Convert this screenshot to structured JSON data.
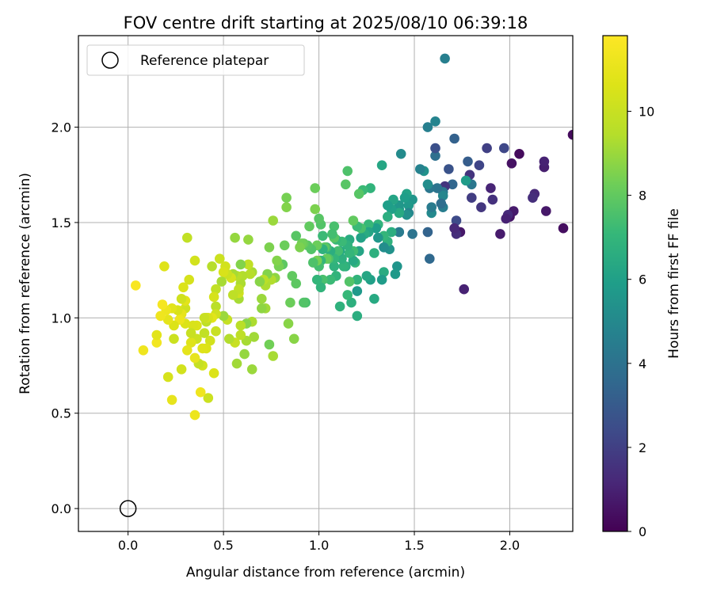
{
  "chart_data": {
    "type": "scatter",
    "title": "FOV centre drift starting at 2025/08/10 06:39:18",
    "xlabel": "Angular distance from reference (arcmin)",
    "ylabel": "Rotation from reference (arcmin)",
    "xlim": [
      -0.26,
      2.33
    ],
    "ylim": [
      -0.12,
      2.48
    ],
    "xticks": [
      0.0,
      0.5,
      1.0,
      1.5,
      2.0
    ],
    "xtick_labels": [
      "0.0",
      "0.5",
      "1.0",
      "1.5",
      "2.0"
    ],
    "yticks": [
      0.0,
      0.5,
      1.0,
      1.5,
      2.0
    ],
    "ytick_labels": [
      "0.0",
      "0.5",
      "1.0",
      "1.5",
      "2.0"
    ],
    "grid": true,
    "legend": {
      "position": "top-left",
      "entries": [
        "Reference platepar"
      ]
    },
    "colorbar": {
      "label": "Hours from first FF file",
      "range": [
        0,
        11.8
      ],
      "ticks": [
        0,
        2,
        4,
        6,
        8,
        10
      ],
      "tick_labels": [
        "0",
        "2",
        "4",
        "6",
        "8",
        "10"
      ],
      "colormap": "viridis"
    },
    "reference_point": {
      "x": 0.0,
      "y": 0.0,
      "label": "Reference platepar"
    },
    "points": [
      [
        2.33,
        1.96,
        0.3
      ],
      [
        2.28,
        1.47,
        0.4
      ],
      [
        2.19,
        1.56,
        0.7
      ],
      [
        2.18,
        1.79,
        0.9
      ],
      [
        2.18,
        1.82,
        1.0
      ],
      [
        2.13,
        1.65,
        1.2
      ],
      [
        2.12,
        1.63,
        1.4
      ],
      [
        2.05,
        1.86,
        0.3
      ],
      [
        2.02,
        1.56,
        0.8
      ],
      [
        2.01,
        1.81,
        0.5
      ],
      [
        2.0,
        1.53,
        0.6
      ],
      [
        1.99,
        1.54,
        1.3
      ],
      [
        1.98,
        1.52,
        1.0
      ],
      [
        1.97,
        1.89,
        2.3
      ],
      [
        1.95,
        1.44,
        0.8
      ],
      [
        1.91,
        1.62,
        1.5
      ],
      [
        1.9,
        1.68,
        1.1
      ],
      [
        1.88,
        1.89,
        2.0
      ],
      [
        1.85,
        1.58,
        1.7
      ],
      [
        1.84,
        1.8,
        2.2
      ],
      [
        1.8,
        1.63,
        1.9
      ],
      [
        1.8,
        1.7,
        4.2
      ],
      [
        1.79,
        1.75,
        1.6
      ],
      [
        1.78,
        1.82,
        3.1
      ],
      [
        1.77,
        1.72,
        5.8
      ],
      [
        1.76,
        1.15,
        1.0
      ],
      [
        1.74,
        1.45,
        0.7
      ],
      [
        1.72,
        1.44,
        1.4
      ],
      [
        1.72,
        1.51,
        2.4
      ],
      [
        1.71,
        1.94,
        3.3
      ],
      [
        1.71,
        1.47,
        1.2
      ],
      [
        1.7,
        1.7,
        3.5
      ],
      [
        1.68,
        1.78,
        2.7
      ],
      [
        1.66,
        2.36,
        4.6
      ],
      [
        1.66,
        1.69,
        1.6
      ],
      [
        1.65,
        1.66,
        4.3
      ],
      [
        1.65,
        1.58,
        4.5
      ],
      [
        1.65,
        1.64,
        4.9
      ],
      [
        1.64,
        1.6,
        3.8
      ],
      [
        1.62,
        1.68,
        4.1
      ],
      [
        1.61,
        1.85,
        3.9
      ],
      [
        1.61,
        1.89,
        2.6
      ],
      [
        1.61,
        2.03,
        4.8
      ],
      [
        1.59,
        1.55,
        5.0
      ],
      [
        1.59,
        1.58,
        4.4
      ],
      [
        1.58,
        1.31,
        3.6
      ],
      [
        1.58,
        1.68,
        4.2
      ],
      [
        1.57,
        1.45,
        3.4
      ],
      [
        1.57,
        2.0,
        4.6
      ],
      [
        1.57,
        1.7,
        5.2
      ],
      [
        1.55,
        1.77,
        5.4
      ],
      [
        1.53,
        1.78,
        4.7
      ],
      [
        1.49,
        1.62,
        5.5
      ],
      [
        1.49,
        1.44,
        4.1
      ],
      [
        1.47,
        1.59,
        5.7
      ],
      [
        1.47,
        1.55,
        4.9
      ],
      [
        1.46,
        1.65,
        6.1
      ],
      [
        1.46,
        1.54,
        5.3
      ],
      [
        1.45,
        1.63,
        5.9
      ],
      [
        1.43,
        1.86,
        5.1
      ],
      [
        1.42,
        1.45,
        4.4
      ],
      [
        1.42,
        1.57,
        5.8
      ],
      [
        1.42,
        1.59,
        5.6
      ],
      [
        1.42,
        1.55,
        6.4
      ],
      [
        1.41,
        1.27,
        5.5
      ],
      [
        1.4,
        1.23,
        5.7
      ],
      [
        1.39,
        1.62,
        6.2
      ],
      [
        1.38,
        1.45,
        6.6
      ],
      [
        1.38,
        1.57,
        6.0
      ],
      [
        1.37,
        1.36,
        5.4
      ],
      [
        1.36,
        1.4,
        6.8
      ],
      [
        1.36,
        1.59,
        5.9
      ],
      [
        1.36,
        1.53,
        6.6
      ],
      [
        1.34,
        1.37,
        5.2
      ],
      [
        1.34,
        1.43,
        7.0
      ],
      [
        1.34,
        1.24,
        6.5
      ],
      [
        1.33,
        1.8,
        6.3
      ],
      [
        1.33,
        1.2,
        5.8
      ],
      [
        1.31,
        1.49,
        6.9
      ],
      [
        1.31,
        1.42,
        5.6
      ],
      [
        1.3,
        1.47,
        5.9
      ],
      [
        1.29,
        1.1,
        6.4
      ],
      [
        1.29,
        1.34,
        6.7
      ],
      [
        1.27,
        1.68,
        6.9
      ],
      [
        1.27,
        1.2,
        6.0
      ],
      [
        1.26,
        1.49,
        7.1
      ],
      [
        1.26,
        1.45,
        6.2
      ],
      [
        1.25,
        1.22,
        6.3
      ],
      [
        1.24,
        1.44,
        6.5
      ],
      [
        1.23,
        1.67,
        7.2
      ],
      [
        1.22,
        1.42,
        6.1
      ],
      [
        1.22,
        1.47,
        7.5
      ],
      [
        1.21,
        1.35,
        6.2
      ],
      [
        1.21,
        1.65,
        7.8
      ],
      [
        1.2,
        1.14,
        5.7
      ],
      [
        1.2,
        1.01,
        6.6
      ],
      [
        1.2,
        1.2,
        6.9
      ],
      [
        1.2,
        1.48,
        7.2
      ],
      [
        1.19,
        1.29,
        7.0
      ],
      [
        1.18,
        1.35,
        7.3
      ],
      [
        1.18,
        1.51,
        8.0
      ],
      [
        1.18,
        1.3,
        6.4
      ],
      [
        1.17,
        1.08,
        6.7
      ],
      [
        1.16,
        1.19,
        7.7
      ],
      [
        1.16,
        1.41,
        6.5
      ],
      [
        1.16,
        1.34,
        7.0
      ],
      [
        1.15,
        1.77,
        7.6
      ],
      [
        1.15,
        1.38,
        6.8
      ],
      [
        1.15,
        1.12,
        7.1
      ],
      [
        1.14,
        1.7,
        7.8
      ],
      [
        1.14,
        1.27,
        6.6
      ],
      [
        1.13,
        1.27,
        6.9
      ],
      [
        1.12,
        1.31,
        6.7
      ],
      [
        1.12,
        1.4,
        7.2
      ],
      [
        1.11,
        1.35,
        6.4
      ],
      [
        1.11,
        1.06,
        6.8
      ],
      [
        1.1,
        1.35,
        7.4
      ],
      [
        1.09,
        1.22,
        6.9
      ],
      [
        1.09,
        1.41,
        7.1
      ],
      [
        1.08,
        1.48,
        7.5
      ],
      [
        1.08,
        1.42,
        7.8
      ],
      [
        1.08,
        1.27,
        6.8
      ],
      [
        1.08,
        1.31,
        7.0
      ],
      [
        1.07,
        1.44,
        7.4
      ],
      [
        1.06,
        1.2,
        7.2
      ],
      [
        1.06,
        1.35,
        6.6
      ],
      [
        1.05,
        1.31,
        7.6
      ],
      [
        1.04,
        1.31,
        8.1
      ],
      [
        1.04,
        1.37,
        7.3
      ],
      [
        1.03,
        1.37,
        7.9
      ],
      [
        1.02,
        1.36,
        6.8
      ],
      [
        1.02,
        1.43,
        7.2
      ],
      [
        1.02,
        1.2,
        7.5
      ],
      [
        1.01,
        1.49,
        7.7
      ],
      [
        1.01,
        1.16,
        6.9
      ],
      [
        1.01,
        1.3,
        7.0
      ],
      [
        1.0,
        1.27,
        7.4
      ],
      [
        1.0,
        1.52,
        7.8
      ],
      [
        0.99,
        1.38,
        8.2
      ],
      [
        0.99,
        1.2,
        7.0
      ],
      [
        0.99,
        1.3,
        8.4
      ],
      [
        0.98,
        1.68,
        8.2
      ],
      [
        0.98,
        1.57,
        8.5
      ],
      [
        0.97,
        1.29,
        7.6
      ],
      [
        0.96,
        1.36,
        7.7
      ],
      [
        0.95,
        1.48,
        8.0
      ],
      [
        0.94,
        1.38,
        7.8
      ],
      [
        0.93,
        1.08,
        7.5
      ],
      [
        0.92,
        1.39,
        8.1
      ],
      [
        0.92,
        1.08,
        7.7
      ],
      [
        0.91,
        1.39,
        8.3
      ],
      [
        0.9,
        1.37,
        8.5
      ],
      [
        0.88,
        1.43,
        7.8
      ],
      [
        0.88,
        1.18,
        7.9
      ],
      [
        0.87,
        0.89,
        8.7
      ],
      [
        0.86,
        1.22,
        8.0
      ],
      [
        0.85,
        1.08,
        8.2
      ],
      [
        0.84,
        0.97,
        8.7
      ],
      [
        0.83,
        1.58,
        8.6
      ],
      [
        0.83,
        1.63,
        8.4
      ],
      [
        0.82,
        1.38,
        8.2
      ],
      [
        0.81,
        1.28,
        7.9
      ],
      [
        0.79,
        1.27,
        8.4
      ],
      [
        0.78,
        1.3,
        8.6
      ],
      [
        0.77,
        1.21,
        8.8
      ],
      [
        0.76,
        1.51,
        9.0
      ],
      [
        0.76,
        0.8,
        9.2
      ],
      [
        0.75,
        1.2,
        9.4
      ],
      [
        0.74,
        1.37,
        8.5
      ],
      [
        0.74,
        0.86,
        8.3
      ],
      [
        0.73,
        1.23,
        8.6
      ],
      [
        0.72,
        1.05,
        9.1
      ],
      [
        0.72,
        1.17,
        9.3
      ],
      [
        0.71,
        1.2,
        9.6
      ],
      [
        0.7,
        1.05,
        8.8
      ],
      [
        0.7,
        1.1,
        9.0
      ],
      [
        0.69,
        1.19,
        8.7
      ],
      [
        0.66,
        0.9,
        9.1
      ],
      [
        0.65,
        0.73,
        9.0
      ],
      [
        0.65,
        1.24,
        9.2
      ],
      [
        0.65,
        0.98,
        9.3
      ],
      [
        0.64,
        1.23,
        9.5
      ],
      [
        0.63,
        1.28,
        9.8
      ],
      [
        0.63,
        1.41,
        8.9
      ],
      [
        0.62,
        0.88,
        9.2
      ],
      [
        0.62,
        0.97,
        8.7
      ],
      [
        0.61,
        0.81,
        8.9
      ],
      [
        0.6,
        1.22,
        9.4
      ],
      [
        0.59,
        0.91,
        9.7
      ],
      [
        0.59,
        1.28,
        8.6
      ],
      [
        0.59,
        1.18,
        9.3
      ],
      [
        0.59,
        0.96,
        9.6
      ],
      [
        0.58,
        1.1,
        9.2
      ],
      [
        0.58,
        1.13,
        10.2
      ],
      [
        0.58,
        1.15,
        9.8
      ],
      [
        0.57,
        0.76,
        9.1
      ],
      [
        0.57,
        1.22,
        9.5
      ],
      [
        0.56,
        0.87,
        10.0
      ],
      [
        0.56,
        1.42,
        8.9
      ],
      [
        0.55,
        1.12,
        9.7
      ],
      [
        0.55,
        1.23,
        9.2
      ],
      [
        0.54,
        1.21,
        10.4
      ],
      [
        0.53,
        0.89,
        9.4
      ],
      [
        0.52,
        1.23,
        10.1
      ],
      [
        0.52,
        0.99,
        9.9
      ],
      [
        0.51,
        1.27,
        10.3
      ],
      [
        0.5,
        1.01,
        9.0
      ],
      [
        0.5,
        1.24,
        10.5
      ],
      [
        0.49,
        1.19,
        9.2
      ],
      [
        0.48,
        1.31,
        10.1
      ],
      [
        0.46,
        1.06,
        9.6
      ],
      [
        0.46,
        1.15,
        9.8
      ],
      [
        0.46,
        0.93,
        10.0
      ],
      [
        0.46,
        1.02,
        10.2
      ],
      [
        0.45,
        0.71,
        10.6
      ],
      [
        0.45,
        1.11,
        10.4
      ],
      [
        0.44,
        1.0,
        10.8
      ],
      [
        0.44,
        1.27,
        9.5
      ],
      [
        0.43,
        0.88,
        10.3
      ],
      [
        0.42,
        1.0,
        10.5
      ],
      [
        0.42,
        0.58,
        10.1
      ],
      [
        0.41,
        0.98,
        9.7
      ],
      [
        0.41,
        0.84,
        10.6
      ],
      [
        0.41,
        1.0,
        10.4
      ],
      [
        0.4,
        1.0,
        10.0
      ],
      [
        0.4,
        0.92,
        9.8
      ],
      [
        0.39,
        0.75,
        10.3
      ],
      [
        0.39,
        0.84,
        10.7
      ],
      [
        0.38,
        0.61,
        11.3
      ],
      [
        0.37,
        0.76,
        9.9
      ],
      [
        0.36,
        0.89,
        10.1
      ],
      [
        0.36,
        0.96,
        10.6
      ],
      [
        0.35,
        0.79,
        11.0
      ],
      [
        0.35,
        1.3,
        10.3
      ],
      [
        0.35,
        0.49,
        11.2
      ],
      [
        0.34,
        0.96,
        10.5
      ],
      [
        0.33,
        0.87,
        10.7
      ],
      [
        0.33,
        0.92,
        10.0
      ],
      [
        0.32,
        1.2,
        10.4
      ],
      [
        0.31,
        1.42,
        9.8
      ],
      [
        0.31,
        0.83,
        10.9
      ],
      [
        0.3,
        1.05,
        10.2
      ],
      [
        0.3,
        0.97,
        10.6
      ],
      [
        0.3,
        1.09,
        10.8
      ],
      [
        0.29,
        1.16,
        10.6
      ],
      [
        0.28,
        0.73,
        10.3
      ],
      [
        0.28,
        1.02,
        11.0
      ],
      [
        0.28,
        1.1,
        10.2
      ],
      [
        0.27,
        0.99,
        11.2
      ],
      [
        0.26,
        1.04,
        10.5
      ],
      [
        0.24,
        0.89,
        10.1
      ],
      [
        0.24,
        0.96,
        10.6
      ],
      [
        0.23,
        0.57,
        11.0
      ],
      [
        0.23,
        1.05,
        10.8
      ],
      [
        0.21,
        0.69,
        10.4
      ],
      [
        0.21,
        0.99,
        10.9
      ],
      [
        0.2,
        1.04,
        11.2
      ],
      [
        0.19,
        1.27,
        10.7
      ],
      [
        0.18,
        1.07,
        11.5
      ],
      [
        0.17,
        1.01,
        11.3
      ],
      [
        0.15,
        0.87,
        11.4
      ],
      [
        0.15,
        0.91,
        10.8
      ],
      [
        0.08,
        0.83,
        11.3
      ],
      [
        0.04,
        1.17,
        11.6
      ]
    ]
  }
}
